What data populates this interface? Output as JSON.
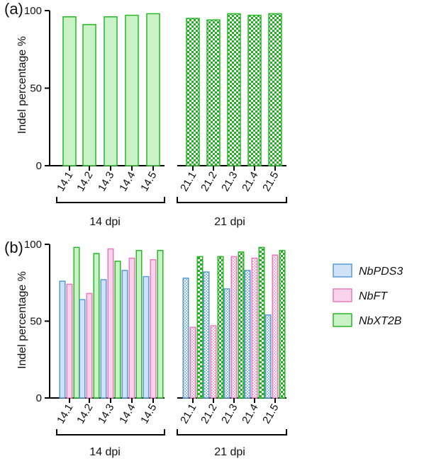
{
  "panels": [
    {
      "panel_label": "(a)",
      "ylabel": "Indel percentage %",
      "group_labels": [
        "14 dpi",
        "21 dpi"
      ]
    },
    {
      "panel_label": "(b)",
      "ylabel": "Indel percentage %",
      "group_labels": [
        "14 dpi",
        "21 dpi"
      ]
    }
  ],
  "legend": [
    {
      "label": "NbPDS3",
      "color": "#5b9bd5",
      "fill": "#cfe2f7"
    },
    {
      "label": "NbFT",
      "color": "#e87bbd",
      "fill": "#f9d3ea"
    },
    {
      "label": "NbXT2B",
      "color": "#28b828",
      "fill": "#c9f2c6"
    }
  ],
  "colors": {
    "green_edge": "#28b828",
    "green_fill": "#c9f2c6",
    "green_check": "#1fb01f",
    "blue_edge": "#5b9bd5",
    "blue_fill": "#cfe2f7",
    "pink_edge": "#e87bbd",
    "pink_fill": "#f9d3ea"
  },
  "chart_data": [
    {
      "type": "bar",
      "panel": "(a)",
      "categories": [
        "14.1",
        "14.2",
        "14.3",
        "14.4",
        "14.5",
        "21.1",
        "21.2",
        "21.3",
        "21.4",
        "21.5"
      ],
      "series": [
        {
          "values": [
            96,
            91,
            96,
            97,
            98,
            95,
            94,
            98,
            97,
            98
          ]
        }
      ],
      "groups": [
        {
          "label": "14 dpi",
          "categories": [
            "14.1",
            "14.2",
            "14.3",
            "14.4",
            "14.5"
          ],
          "pattern": "solid"
        },
        {
          "label": "21 dpi",
          "categories": [
            "21.1",
            "21.2",
            "21.3",
            "21.4",
            "21.5"
          ],
          "pattern": "checkered"
        }
      ],
      "ylabel": "Indel percentage %",
      "ylim": [
        0,
        100
      ],
      "yticks": [
        0,
        50,
        100
      ],
      "legend": false
    },
    {
      "type": "bar",
      "panel": "(b)",
      "categories": [
        "14.1",
        "14.2",
        "14.3",
        "14.4",
        "14.5",
        "21.1",
        "21.2",
        "21.3",
        "21.4",
        "21.5"
      ],
      "series": [
        {
          "name": "NbPDS3",
          "values": [
            76,
            64,
            77,
            83,
            79,
            78,
            82,
            71,
            83,
            54
          ]
        },
        {
          "name": "NbFT",
          "values": [
            74,
            68,
            97,
            91,
            90,
            46,
            47,
            92,
            91,
            93
          ]
        },
        {
          "name": "NbXT2B",
          "values": [
            98,
            94,
            89,
            96,
            96,
            92,
            92,
            95,
            98,
            96
          ]
        }
      ],
      "groups": [
        {
          "label": "14 dpi",
          "categories": [
            "14.1",
            "14.2",
            "14.3",
            "14.4",
            "14.5"
          ],
          "pattern": "solid"
        },
        {
          "label": "21 dpi",
          "categories": [
            "21.1",
            "21.2",
            "21.3",
            "21.4",
            "21.5"
          ],
          "pattern": "checkered"
        }
      ],
      "ylabel": "Indel percentage %",
      "ylim": [
        0,
        100
      ],
      "yticks": [
        0,
        50,
        100
      ],
      "legend": "right"
    }
  ]
}
